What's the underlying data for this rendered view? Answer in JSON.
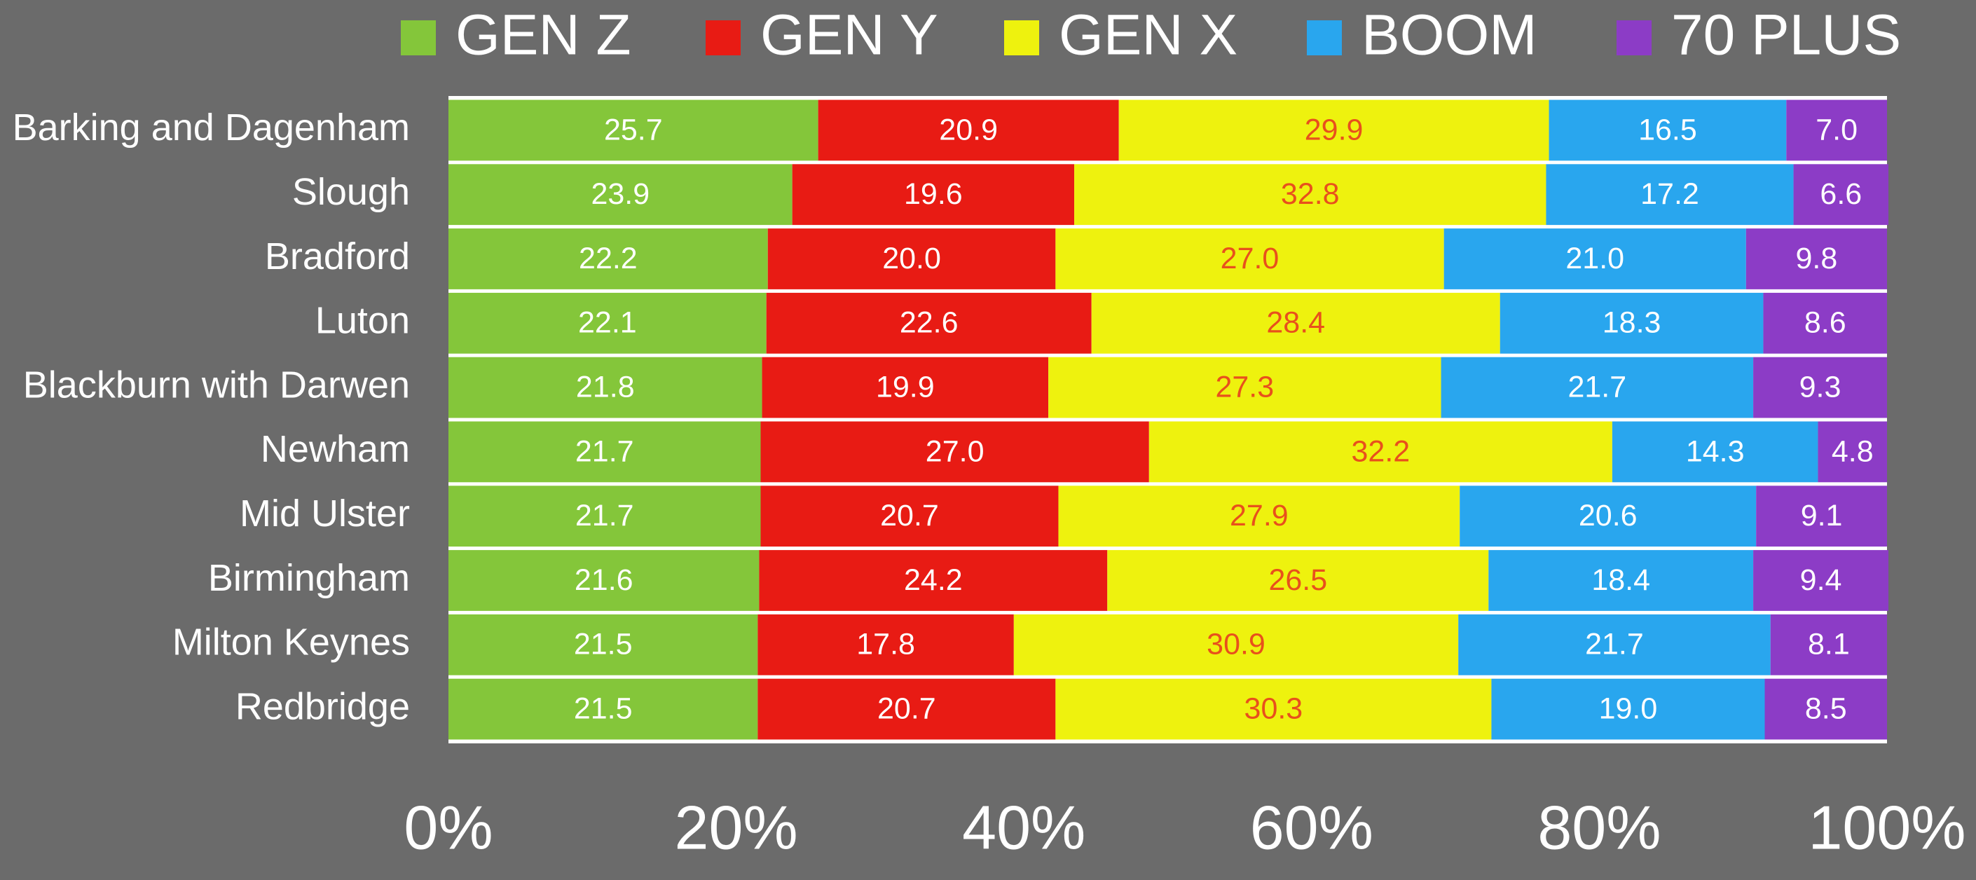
{
  "chart_data": {
    "type": "stacked-barh",
    "categories": [
      "Barking and Dagenham",
      "Slough",
      "Bradford",
      "Luton",
      "Blackburn with Darwen",
      "Newham",
      "Mid Ulster",
      "Birmingham",
      "Milton Keynes",
      "Redbridge"
    ],
    "series": [
      {
        "name": "GEN Z",
        "color": "#84c63a",
        "label_color": "#ffffff",
        "values": [
          25.7,
          23.9,
          22.2,
          22.1,
          21.8,
          21.7,
          21.7,
          21.6,
          21.5,
          21.5
        ],
        "value_labels": [
          "25.7",
          "23.9",
          "22.2",
          "22.1",
          "21.8",
          "21.7",
          "21.7",
          "21.6",
          "21.5",
          "21.5"
        ]
      },
      {
        "name": "GEN Y",
        "color": "#e81b14",
        "label_color": "#ffffff",
        "values": [
          20.9,
          19.6,
          20.0,
          22.6,
          19.9,
          27.0,
          20.7,
          24.2,
          17.8,
          20.7
        ],
        "value_labels": [
          "20.9",
          "19.6",
          "20.0",
          "22.6",
          "19.9",
          "27.0",
          "20.7",
          "24.2",
          "17.8",
          "20.7"
        ]
      },
      {
        "name": "GEN X",
        "color": "#eef20e",
        "label_color": "#e8501c",
        "values": [
          29.9,
          32.8,
          27.0,
          28.4,
          27.3,
          32.2,
          27.9,
          26.5,
          30.9,
          30.3
        ],
        "value_labels": [
          "29.9",
          "32.8",
          "27.0",
          "28.4",
          "27.3",
          "32.2",
          "27.9",
          "26.5",
          "30.9",
          "30.3"
        ]
      },
      {
        "name": "BOOM",
        "color": "#29a6ee",
        "label_color": "#ffffff",
        "values": [
          16.5,
          17.2,
          21.0,
          18.3,
          21.7,
          14.3,
          20.6,
          18.4,
          21.7,
          19.0
        ],
        "value_labels": [
          "16.5",
          "17.2",
          "21.0",
          "18.3",
          "21.7",
          "14.3",
          "20.6",
          "18.4",
          "21.7",
          "19.0"
        ]
      },
      {
        "name": "70 PLUS",
        "color": "#8c3cc6",
        "label_color": "#ffffff",
        "values": [
          7.0,
          6.6,
          9.8,
          8.6,
          9.3,
          4.8,
          9.1,
          9.4,
          8.1,
          8.5
        ],
        "value_labels": [
          "7.0",
          "6.6",
          "9.8",
          "8.6",
          "9.3",
          "4.8",
          "9.1",
          "9.4",
          "8.1",
          "8.5"
        ]
      }
    ],
    "xlim": [
      0,
      100
    ],
    "xticks": [
      {
        "value": 0,
        "label": "0%"
      },
      {
        "value": 20,
        "label": "20%"
      },
      {
        "value": 40,
        "label": "40%"
      },
      {
        "value": 60,
        "label": "60%"
      },
      {
        "value": 80,
        "label": "80%"
      },
      {
        "value": 100,
        "label": "100%"
      }
    ],
    "grid": false,
    "legend": "top"
  }
}
